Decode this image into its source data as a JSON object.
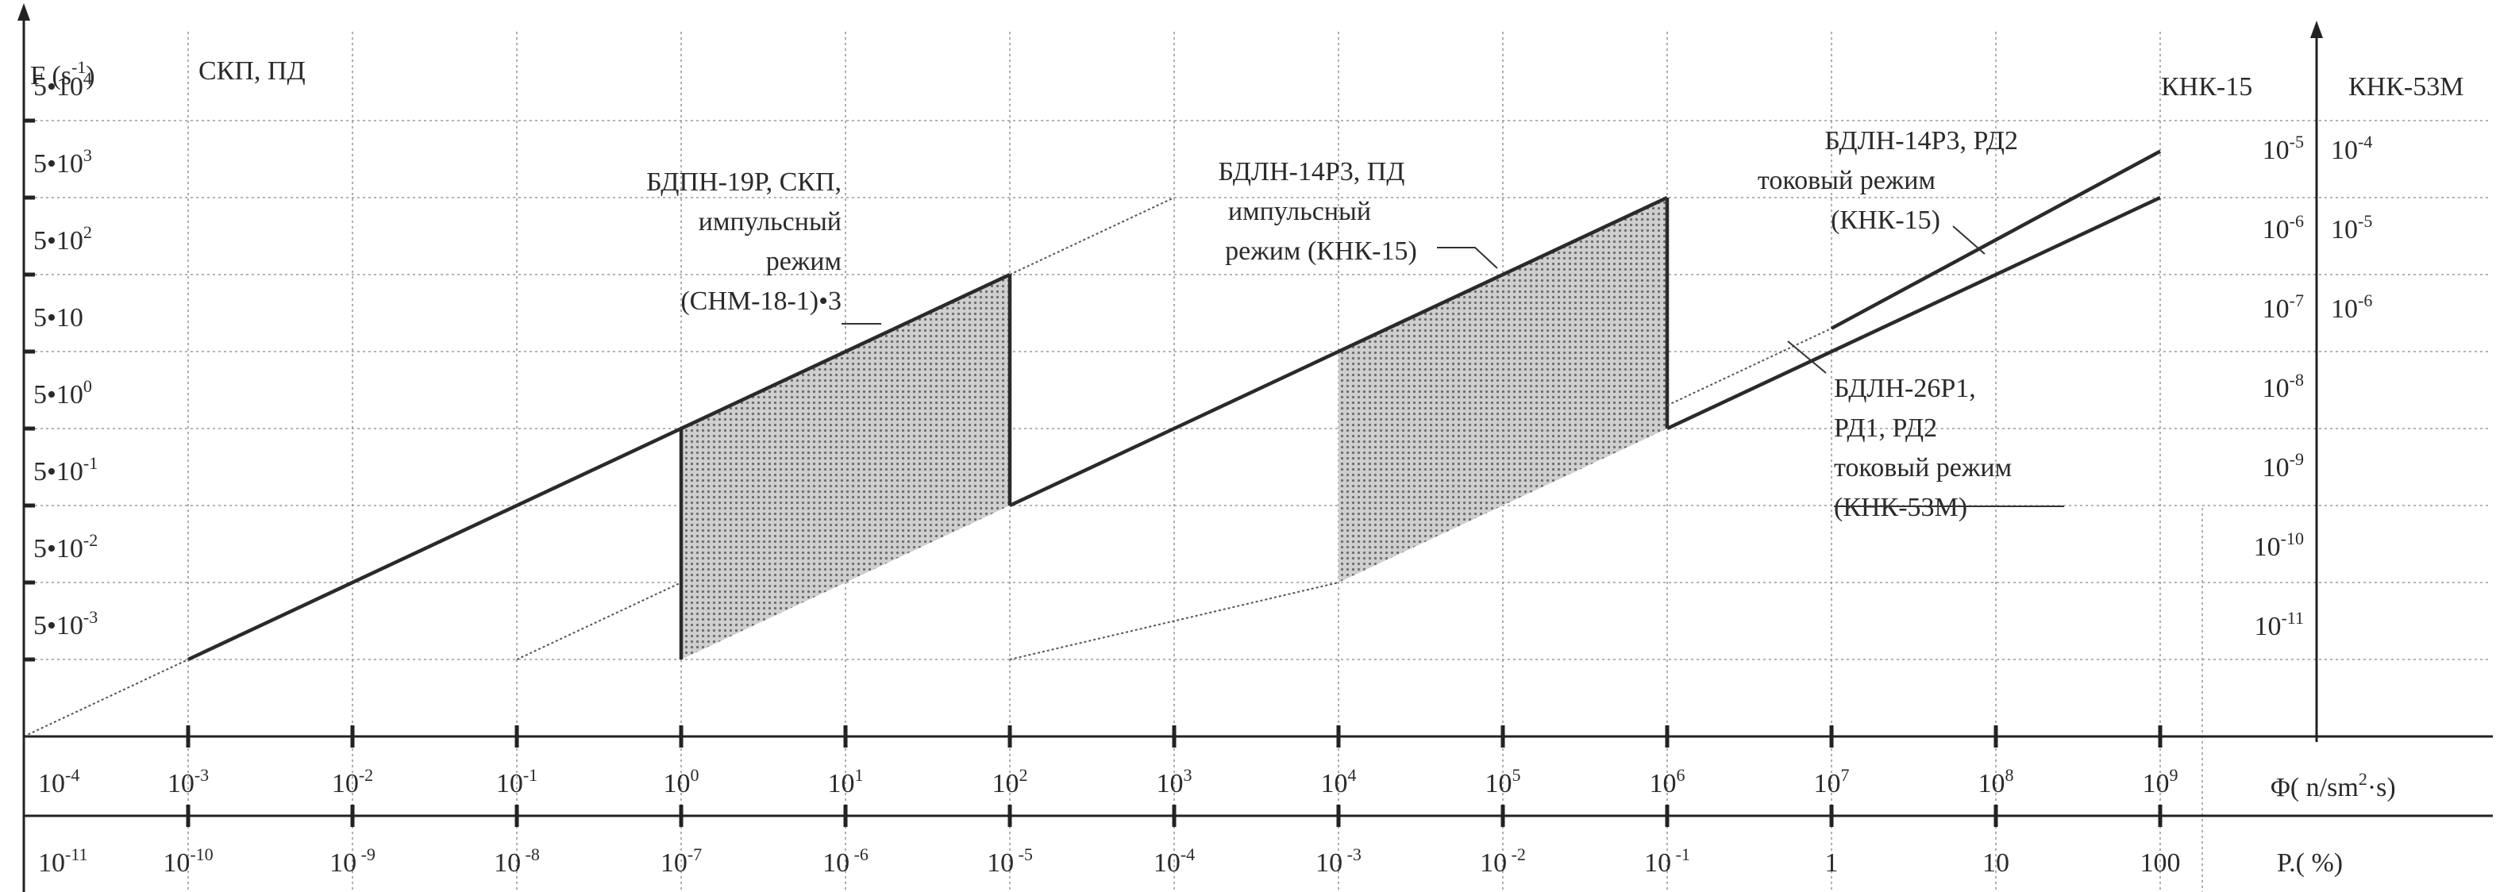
{
  "chart_data": {
    "type": "line",
    "y_axis": {
      "label": "F (s -1)",
      "label_main": "F (s",
      "label_sup": "-1",
      "label_end": ")",
      "scale": "log",
      "ticks": [
        {
          "value": 0.005,
          "base": "5•10",
          "sup": "-3"
        },
        {
          "value": 0.05,
          "base": "5•10",
          "sup": "-2"
        },
        {
          "value": 0.5,
          "base": "5•10",
          "sup": "-1"
        },
        {
          "value": 5,
          "base": "5•10",
          "sup": "0"
        },
        {
          "value": 50,
          "base": "5•10",
          "sup": ""
        },
        {
          "value": 500,
          "base": "5•10",
          "sup": "2"
        },
        {
          "value": 5000,
          "base": "5•10",
          "sup": "3"
        },
        {
          "value": 50000,
          "base": "5•10",
          "sup": "4"
        }
      ]
    },
    "x_axis": {
      "label": "Φ( n/sm2·s)",
      "label_main": "Φ( n/sm",
      "label_sup": "2",
      "label_end": "·s)",
      "scale": "log",
      "ticks": [
        {
          "value": 0.0001,
          "base": "10",
          "sup": "-4"
        },
        {
          "value": 0.001,
          "base": "10",
          "sup": "-3"
        },
        {
          "value": 0.01,
          "base": "10",
          "sup": "-2"
        },
        {
          "value": 0.1,
          "base": "10",
          "sup": "-1"
        },
        {
          "value": 1,
          "base": "10",
          "sup": "0"
        },
        {
          "value": 10,
          "base": "10",
          "sup": "1"
        },
        {
          "value": 100,
          "base": "10",
          "sup": "2"
        },
        {
          "value": 1000,
          "base": "10",
          "sup": "3"
        },
        {
          "value": 10000,
          "base": "10",
          "sup": "4"
        },
        {
          "value": 100000,
          "base": "10",
          "sup": "5"
        },
        {
          "value": 1000000,
          "base": "10",
          "sup": "6"
        },
        {
          "value": 10000000,
          "base": "10",
          "sup": "7"
        },
        {
          "value": 100000000,
          "base": "10",
          "sup": "8"
        },
        {
          "value": 1000000000,
          "base": "10",
          "sup": "9"
        }
      ]
    },
    "p_axis": {
      "label": "P.( %)",
      "ticks": [
        {
          "base": "10",
          "sup": "-11"
        },
        {
          "base": "10",
          "sup": "-10"
        },
        {
          "base": "10",
          "sup": " -9"
        },
        {
          "base": "10",
          "sup": " -8"
        },
        {
          "base": "10",
          "sup": "-7"
        },
        {
          "base": "10",
          "sup": " -6"
        },
        {
          "base": "10",
          "sup": " -5"
        },
        {
          "base": "10",
          "sup": "-4"
        },
        {
          "base": "10",
          "sup": " -3"
        },
        {
          "base": "10",
          "sup": " -2"
        },
        {
          "base": "10",
          "sup": " -1"
        },
        {
          "base": "1",
          "sup": ""
        },
        {
          "base": "10",
          "sup": ""
        },
        {
          "base": "100",
          "sup": ""
        }
      ]
    },
    "right_axes": {
      "knk15": {
        "label": "КНК-15",
        "ticks": [
          {
            "base": "10",
            "sup": "-5"
          },
          {
            "base": "10",
            "sup": "-6"
          },
          {
            "base": "10",
            "sup": "-7"
          },
          {
            "base": "10",
            "sup": "-8"
          },
          {
            "base": "10",
            "sup": "-9"
          },
          {
            "base": "10",
            "sup": "-10"
          },
          {
            "base": "10",
            "sup": "-11"
          }
        ]
      },
      "knk53": {
        "label": "КНК-53М",
        "ticks": [
          {
            "base": "10",
            "sup": "-4"
          },
          {
            "base": "10",
            "sup": "-5"
          },
          {
            "base": "10",
            "sup": "-6"
          }
        ]
      }
    },
    "top_left_label": "СКП, ПД",
    "series": [
      {
        "name": "БДПН-19Р, СКП, импульсный режим (СНМ-18-1)•3",
        "solid_upper": [
          [
            0.001,
            0.005
          ],
          [
            100,
            500
          ]
        ],
        "solid_lower": [
          [
            0.1,
            0.005
          ],
          [
            1,
            0.05
          ]
        ],
        "dashed": [
          [
            0.0001,
            0.0005
          ],
          [
            0.001,
            0.005
          ]
        ],
        "shaded_x": [
          1,
          100
        ]
      },
      {
        "name": "БДЛН-14Р3, ПД импульсный режим (КНК-15)",
        "solid_upper": [
          [
            100,
            0.5
          ],
          [
            1000000,
            5000
          ]
        ],
        "dashed": [
          [
            0.1,
            0.0005
          ],
          [
            1000,
            5000
          ],
          [
            100,
            0.0005
          ],
          [
            10000,
            0.05
          ]
        ],
        "shaded_x": [
          10000,
          1000000
        ]
      },
      {
        "name": "БДЛН-14Р3, РД2 токовый режим (КНК-15)",
        "solid": [
          [
            10000000,
            50
          ],
          [
            1000000000,
            20000
          ]
        ]
      },
      {
        "name": "БДЛН-26Р1, РД1, РД2 токовый режим (КНК-53М)",
        "solid": [
          [
            1000000,
            5
          ],
          [
            1000000000,
            5000
          ]
        ]
      }
    ],
    "annotations": {
      "a1": [
        "БДПН-19Р, СКП,",
        "импульсный",
        "режим",
        "(СНМ-18-1)•3"
      ],
      "a2": [
        "БДЛН-14Р3, ПД",
        "импульсный",
        "режим (КНК-15)"
      ],
      "a3": [
        "БДЛН-14Р3, РД2",
        "токовый режим",
        "(КНК-15)"
      ],
      "a4": [
        "БДЛН-26Р1,",
        "РД1, РД2",
        "токовый режим",
        "(КНК-53М)"
      ]
    },
    "grid": true
  }
}
